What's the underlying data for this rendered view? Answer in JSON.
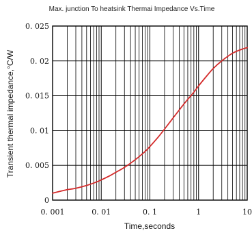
{
  "chart_data": {
    "type": "line",
    "title": "Max. junction To heatsink Thermai Impedance Vs.Time",
    "xlabel": "Time,seconds",
    "ylabel": "Transient thermal impedance,°C/W",
    "x_scale": "log",
    "xlim": [
      0.001,
      10
    ],
    "ylim": [
      0,
      0.025
    ],
    "grid": {
      "x": true,
      "y": true
    },
    "x_ticks": [
      {
        "value": 0.001,
        "label": "0. 001"
      },
      {
        "value": 0.01,
        "label": "0. 01"
      },
      {
        "value": 0.1,
        "label": "0. 1"
      },
      {
        "value": 1,
        "label": "1"
      },
      {
        "value": 10,
        "label": "10"
      }
    ],
    "y_ticks": [
      {
        "value": 0,
        "label": "0"
      },
      {
        "value": 0.005,
        "label": "0. 005"
      },
      {
        "value": 0.01,
        "label": "0. 01"
      },
      {
        "value": 0.015,
        "label": "0. 015"
      },
      {
        "value": 0.02,
        "label": "0. 02"
      },
      {
        "value": 0.025,
        "label": "0. 025"
      }
    ],
    "series": [
      {
        "color": "#d42a2a",
        "x": [
          0.001,
          0.0015,
          0.002,
          0.003,
          0.005,
          0.008,
          0.01,
          0.015,
          0.02,
          0.03,
          0.05,
          0.08,
          0.1,
          0.15,
          0.2,
          0.3,
          0.5,
          0.8,
          1,
          1.5,
          2,
          3,
          5,
          8,
          10
        ],
        "y": [
          0.001,
          0.0013,
          0.0015,
          0.0017,
          0.0021,
          0.0026,
          0.0029,
          0.0035,
          0.004,
          0.0047,
          0.0058,
          0.007,
          0.0077,
          0.0091,
          0.0102,
          0.0118,
          0.0138,
          0.0155,
          0.0164,
          0.0179,
          0.0189,
          0.02,
          0.0211,
          0.0217,
          0.0219
        ]
      }
    ]
  }
}
